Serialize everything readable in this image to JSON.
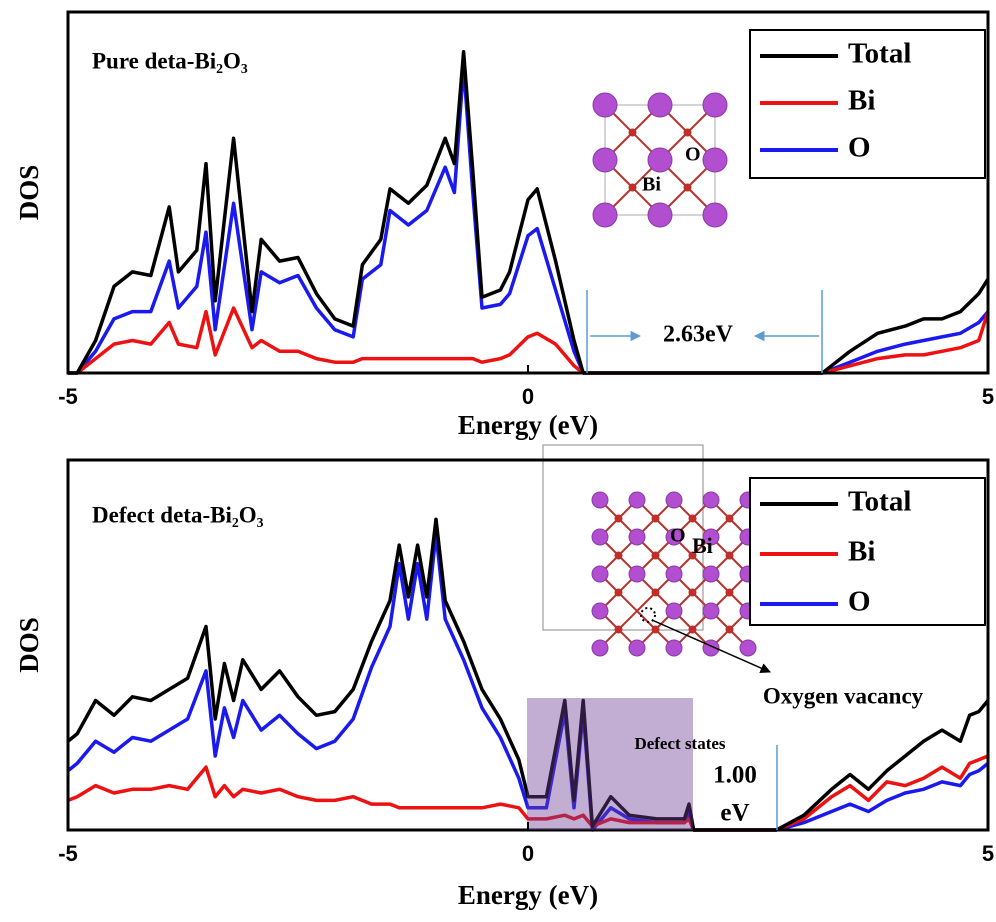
{
  "chart_data": [
    {
      "type": "line",
      "title": "Pure deta-Bi₂O₃",
      "x_label": "Energy (eV)",
      "y_label": "DOS",
      "xlim": [
        -5,
        5
      ],
      "xticks": [
        -5,
        0,
        5
      ],
      "ylim": [
        0,
        100
      ],
      "legend": "upper right",
      "x": [
        -5,
        -4.9,
        -4.7,
        -4.5,
        -4.3,
        -4.1,
        -3.9,
        -3.8,
        -3.6,
        -3.5,
        -3.4,
        -3.2,
        -3.0,
        -2.9,
        -2.7,
        -2.5,
        -2.3,
        -2.1,
        -1.9,
        -1.8,
        -1.6,
        -1.5,
        -1.3,
        -1.1,
        -0.9,
        -0.8,
        -0.7,
        -0.6,
        -0.5,
        -0.3,
        -0.2,
        0,
        0.1,
        0.3,
        0.5,
        0.6,
        1,
        2,
        3.2,
        3.5,
        3.8,
        4.1,
        4.3,
        4.5,
        4.7,
        4.9,
        5
      ],
      "series": [
        {
          "name": "Total",
          "color": "#000000",
          "values": [
            0,
            0,
            9,
            24,
            28,
            27,
            46,
            28,
            34,
            58,
            20,
            65,
            17,
            37,
            31,
            32,
            22,
            15,
            13,
            30,
            37,
            51,
            47,
            52,
            65,
            58,
            89,
            56,
            21,
            23,
            28,
            48,
            51,
            31,
            9,
            0,
            0,
            0,
            0,
            6,
            11,
            13,
            15,
            15,
            17,
            22,
            26
          ]
        },
        {
          "name": "Bi",
          "color": "#ee1111",
          "values": [
            0,
            0,
            4,
            8,
            9,
            8,
            14,
            8,
            7,
            17,
            5,
            18,
            7,
            9,
            6,
            6,
            4,
            3,
            3,
            4,
            4,
            4,
            4,
            4,
            4,
            4,
            4,
            4,
            3,
            4,
            5,
            10,
            11,
            8,
            2,
            0,
            0,
            0,
            0,
            2,
            4,
            5,
            5,
            6,
            7,
            9,
            17
          ]
        },
        {
          "name": "O",
          "color": "#1a1aee",
          "values": [
            0,
            0,
            6,
            15,
            17,
            17,
            31,
            18,
            24,
            39,
            12,
            47,
            12,
            28,
            25,
            27,
            18,
            12,
            10,
            26,
            30,
            45,
            41,
            45,
            57,
            50,
            85,
            50,
            18,
            19,
            22,
            38,
            40,
            23,
            6,
            0,
            0,
            0,
            0,
            3,
            6,
            8,
            9,
            10,
            11,
            14,
            17
          ]
        }
      ],
      "annotations": [
        "2.63eV"
      ],
      "inset_labels": [
        "O",
        "Bi"
      ]
    },
    {
      "type": "line",
      "title": "Defect deta-Bi₂O₃",
      "x_label": "Energy (eV)",
      "y_label": "DOS",
      "xlim": [
        -5,
        5
      ],
      "xticks": [
        -5,
        0,
        5
      ],
      "ylim": [
        0,
        100
      ],
      "legend": "upper right",
      "x": [
        -5,
        -4.9,
        -4.7,
        -4.5,
        -4.3,
        -4.1,
        -3.9,
        -3.7,
        -3.5,
        -3.4,
        -3.3,
        -3.2,
        -3.1,
        -2.9,
        -2.7,
        -2.5,
        -2.3,
        -2.1,
        -1.9,
        -1.7,
        -1.5,
        -1.4,
        -1.3,
        -1.2,
        -1.1,
        -1.0,
        -0.9,
        -0.7,
        -0.5,
        -0.3,
        -0.1,
        0,
        0.2,
        0.4,
        0.5,
        0.6,
        0.7,
        0.9,
        1.1,
        1.4,
        1.7,
        1.75,
        1.8,
        2.7,
        3.0,
        3.3,
        3.5,
        3.7,
        3.9,
        4.1,
        4.3,
        4.5,
        4.7,
        4.8,
        4.9,
        5
      ],
      "series": [
        {
          "name": "Total",
          "color": "#000000",
          "values": [
            24,
            26,
            35,
            31,
            36,
            35,
            38,
            41,
            55,
            30,
            45,
            35,
            46,
            38,
            43,
            36,
            31,
            32,
            38,
            51,
            62,
            77,
            63,
            77,
            63,
            84,
            62,
            51,
            38,
            30,
            19,
            9,
            9,
            35,
            8,
            35,
            1,
            9,
            4,
            3,
            3,
            7,
            0,
            0,
            4,
            11,
            15,
            11,
            16,
            20,
            24,
            27,
            24,
            31,
            32,
            35
          ]
        },
        {
          "name": "Bi",
          "color": "#ee1111",
          "values": [
            8,
            9,
            12,
            10,
            11,
            11,
            12,
            11,
            17,
            9,
            12,
            9,
            11,
            10,
            11,
            9,
            8,
            8,
            9,
            7,
            7,
            6,
            6,
            6,
            6,
            6,
            6,
            6,
            6,
            7,
            6,
            3,
            3,
            4,
            3,
            4,
            1,
            3,
            2,
            2,
            2,
            3,
            0,
            0,
            3,
            9,
            12,
            8,
            13,
            12,
            14,
            17,
            14,
            18,
            19,
            20
          ]
        },
        {
          "name": "O",
          "color": "#1a1aee",
          "values": [
            16,
            18,
            24,
            21,
            25,
            24,
            27,
            30,
            43,
            20,
            33,
            25,
            35,
            27,
            31,
            26,
            22,
            24,
            30,
            44,
            55,
            72,
            57,
            72,
            57,
            80,
            57,
            46,
            33,
            25,
            14,
            6,
            6,
            32,
            6,
            32,
            0,
            6,
            3,
            2,
            2,
            5,
            0,
            0,
            2,
            5,
            7,
            5,
            8,
            10,
            11,
            13,
            12,
            15,
            16,
            18
          ]
        }
      ],
      "annotations": [
        "Defect states",
        "1.00",
        "eV",
        "Oxygen vacancy"
      ],
      "inset_labels": [
        "O",
        "Bi"
      ]
    }
  ]
}
